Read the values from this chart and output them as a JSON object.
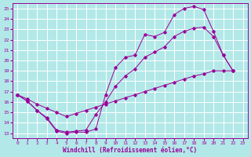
{
  "xlabel": "Windchill (Refroidissement éolien,°C)",
  "xlim": [
    -0.5,
    23.5
  ],
  "ylim": [
    12.5,
    25.5
  ],
  "xticks": [
    0,
    1,
    2,
    3,
    4,
    5,
    6,
    7,
    8,
    9,
    10,
    11,
    12,
    13,
    14,
    15,
    16,
    17,
    18,
    19,
    20,
    21,
    22,
    23
  ],
  "yticks": [
    13,
    14,
    15,
    16,
    17,
    18,
    19,
    20,
    21,
    22,
    23,
    24,
    25
  ],
  "bg_color": "#b3e8e8",
  "line_color": "#990099",
  "grid_color": "#ffffff",
  "curve1_x": [
    0,
    1,
    2,
    3,
    4,
    5,
    6,
    7,
    8,
    9,
    10,
    11,
    12,
    13,
    14,
    15,
    16,
    17,
    18,
    19,
    20,
    21,
    22
  ],
  "curve1_y": [
    16.7,
    16.1,
    15.2,
    14.4,
    13.2,
    13.0,
    13.1,
    13.1,
    13.4,
    16.7,
    19.3,
    20.3,
    20.5,
    22.5,
    22.3,
    22.7,
    24.4,
    25.0,
    25.2,
    24.9,
    22.8,
    20.5,
    19.0
  ],
  "curve2_x": [
    0,
    1,
    2,
    3,
    4,
    5,
    6,
    7,
    8,
    9,
    10,
    11,
    12,
    13,
    14,
    15,
    16,
    17,
    18,
    19,
    20,
    21,
    22
  ],
  "curve2_y": [
    16.7,
    16.1,
    15.2,
    14.5,
    13.3,
    13.1,
    13.2,
    13.3,
    14.8,
    16.0,
    17.5,
    18.5,
    19.2,
    20.3,
    20.8,
    21.3,
    22.3,
    22.8,
    23.1,
    23.2,
    22.3,
    20.5,
    19.0
  ],
  "line3_x": [
    0,
    1,
    2,
    3,
    4,
    5,
    6,
    7,
    8,
    9,
    10,
    11,
    12,
    13,
    14,
    15,
    16,
    17,
    18,
    19,
    20,
    21,
    22
  ],
  "line3_y": [
    16.7,
    16.3,
    15.8,
    15.4,
    15.0,
    14.6,
    14.9,
    15.2,
    15.5,
    15.8,
    16.1,
    16.4,
    16.7,
    17.0,
    17.3,
    17.6,
    17.9,
    18.2,
    18.5,
    18.7,
    19.0,
    19.0,
    19.0
  ]
}
